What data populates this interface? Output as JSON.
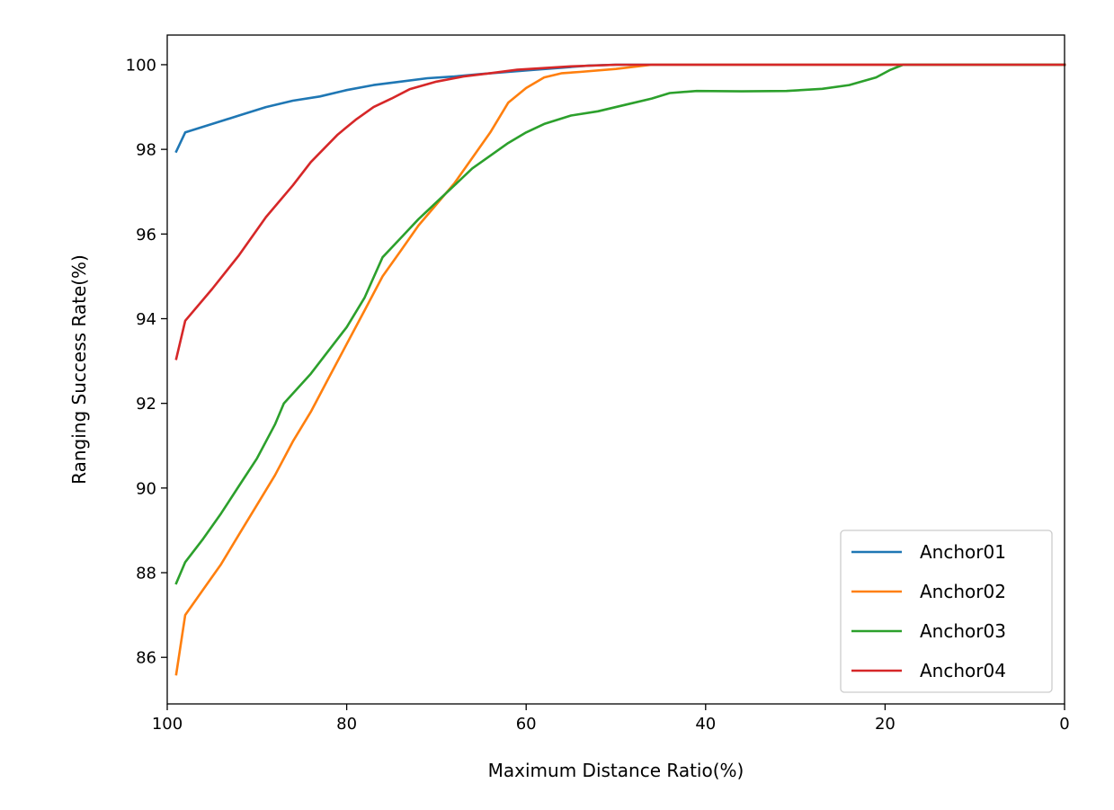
{
  "chart_data": {
    "type": "line",
    "title": "",
    "xlabel": "Maximum Distance Ratio(%)",
    "ylabel": "Ranging Success Rate(%)",
    "xlim": [
      100,
      0
    ],
    "ylim": [
      84.9,
      100.7
    ],
    "x_ticks": [
      100,
      80,
      60,
      40,
      20,
      0
    ],
    "x_tick_labels": [
      "100",
      "80",
      "60",
      "40",
      "20",
      "0"
    ],
    "y_ticks": [
      86,
      88,
      90,
      92,
      94,
      96,
      98,
      100
    ],
    "y_tick_labels": [
      "86",
      "88",
      "90",
      "92",
      "94",
      "96",
      "98",
      "100"
    ],
    "grid": false,
    "legend_position": "lower-right",
    "series": [
      {
        "name": "Anchor01",
        "color": "#1f77b4",
        "x": [
          99,
          98,
          95,
          92,
          89,
          86,
          83,
          80,
          77,
          74,
          71,
          68,
          65,
          62,
          59,
          56,
          53,
          50,
          45,
          40,
          30,
          20,
          10,
          0
        ],
        "y": [
          97.95,
          98.4,
          98.6,
          98.8,
          99.0,
          99.15,
          99.25,
          99.4,
          99.52,
          99.6,
          99.68,
          99.72,
          99.78,
          99.83,
          99.88,
          99.93,
          99.98,
          100,
          100,
          100,
          100,
          100,
          100,
          100
        ]
      },
      {
        "name": "Anchor02",
        "color": "#ff7f0e",
        "x": [
          99,
          98,
          96,
          94,
          92,
          90,
          88,
          86,
          84,
          82,
          80,
          78,
          76,
          74,
          72,
          70,
          68,
          66,
          64,
          62,
          60,
          58,
          56,
          54,
          50,
          46,
          40,
          30,
          20,
          10,
          0
        ],
        "y": [
          85.6,
          87.0,
          87.6,
          88.2,
          88.9,
          89.6,
          90.3,
          91.1,
          91.8,
          92.6,
          93.4,
          94.2,
          95.0,
          95.6,
          96.2,
          96.7,
          97.2,
          97.8,
          98.4,
          99.1,
          99.45,
          99.7,
          99.8,
          99.83,
          99.9,
          100,
          100,
          100,
          100,
          100,
          100
        ]
      },
      {
        "name": "Anchor03",
        "color": "#2ca02c",
        "x": [
          99,
          98,
          96,
          94,
          92,
          90,
          88,
          87,
          84,
          82,
          80,
          78,
          76,
          74,
          72,
          70,
          68,
          66,
          64,
          62,
          60,
          58,
          55,
          52,
          49,
          46,
          44,
          41,
          36,
          31,
          27,
          24,
          21,
          19.5,
          18,
          10,
          0
        ],
        "y": [
          87.75,
          88.25,
          88.8,
          89.4,
          90.05,
          90.7,
          91.5,
          92.0,
          92.7,
          93.25,
          93.8,
          94.5,
          95.45,
          95.9,
          96.35,
          96.75,
          97.15,
          97.55,
          97.85,
          98.15,
          98.4,
          98.6,
          98.8,
          98.9,
          99.05,
          99.2,
          99.33,
          99.38,
          99.37,
          99.38,
          99.43,
          99.52,
          99.7,
          99.87,
          100,
          100,
          100
        ]
      },
      {
        "name": "Anchor04",
        "color": "#d62728",
        "x": [
          99,
          98,
          95,
          92,
          89,
          86,
          84,
          81,
          79,
          77,
          75,
          73,
          70,
          67,
          64,
          61,
          58,
          55,
          50,
          45,
          40,
          30,
          20,
          10,
          0
        ],
        "y": [
          93.05,
          93.95,
          94.7,
          95.5,
          96.4,
          97.15,
          97.7,
          98.35,
          98.7,
          99.0,
          99.2,
          99.42,
          99.6,
          99.72,
          99.8,
          99.88,
          99.92,
          99.96,
          100,
          100,
          100,
          100,
          100,
          100,
          100
        ]
      }
    ]
  }
}
